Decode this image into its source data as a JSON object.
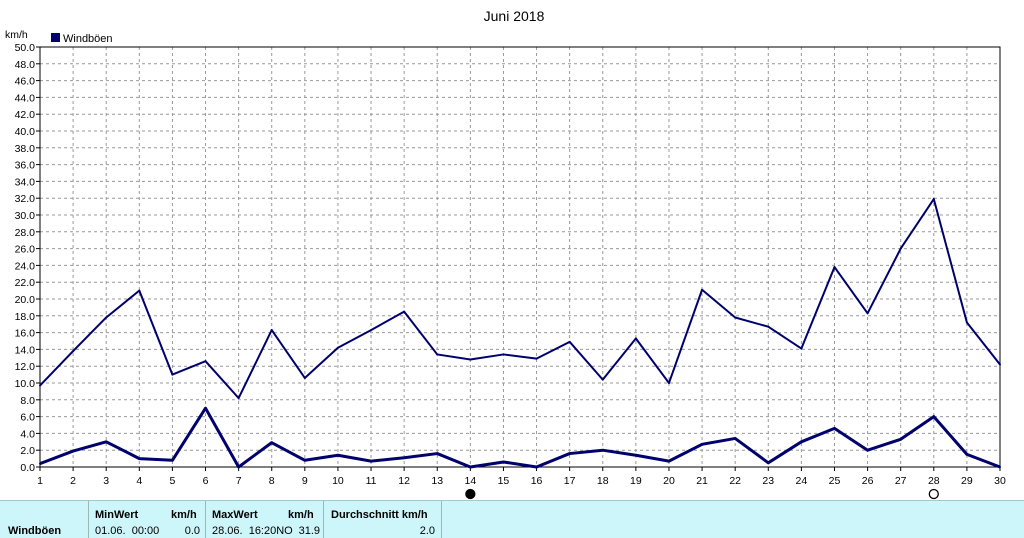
{
  "chart_data": {
    "type": "line",
    "title": "Juni 2018",
    "ylabel": "km/h",
    "legend": "Windböen",
    "legend_position": "top-left",
    "grid": true,
    "ylim": [
      0,
      50
    ],
    "ytick_step": 2,
    "x": [
      1,
      2,
      3,
      4,
      5,
      6,
      7,
      8,
      9,
      10,
      11,
      12,
      13,
      14,
      15,
      16,
      17,
      18,
      19,
      20,
      21,
      22,
      23,
      24,
      25,
      26,
      27,
      28,
      29,
      30
    ],
    "series": [
      {
        "role": "max",
        "values": [
          9.7,
          13.8,
          17.8,
          21.0,
          11.0,
          12.6,
          8.2,
          16.3,
          10.6,
          14.2,
          16.3,
          18.5,
          13.4,
          12.8,
          13.4,
          12.9,
          14.9,
          10.4,
          15.3,
          10.0,
          21.1,
          17.8,
          16.7,
          14.1,
          23.8,
          18.3,
          26.0,
          31.9,
          17.2,
          12.2
        ]
      },
      {
        "role": "avg",
        "values": [
          0.4,
          1.9,
          3.0,
          1.0,
          0.8,
          7.0,
          0.0,
          2.9,
          0.8,
          1.4,
          0.7,
          1.1,
          1.6,
          0.0,
          0.6,
          0.0,
          1.6,
          2.0,
          1.4,
          0.7,
          2.7,
          3.4,
          0.5,
          3.0,
          4.6,
          2.0,
          3.3,
          6.0,
          1.5,
          0.0
        ]
      }
    ],
    "markers": [
      {
        "x": 14,
        "symbol": "filled-circle"
      },
      {
        "x": 28,
        "symbol": "open-circle"
      }
    ],
    "line_color": "#00006e",
    "grid_color": "#999999"
  },
  "stats": {
    "row_label": "Windböen",
    "min_header": "MinWert",
    "min_unit": "km/h",
    "min_date": "01.06.  00:00",
    "min_value": "0.0",
    "max_header": "MaxWert",
    "max_unit": "km/h",
    "max_date": "28.06.  16:20NO",
    "max_value": "31.9",
    "avg_header": "Durchschnitt km/h",
    "avg_value": "2.0",
    "bg_color": "#ccf6fa"
  }
}
